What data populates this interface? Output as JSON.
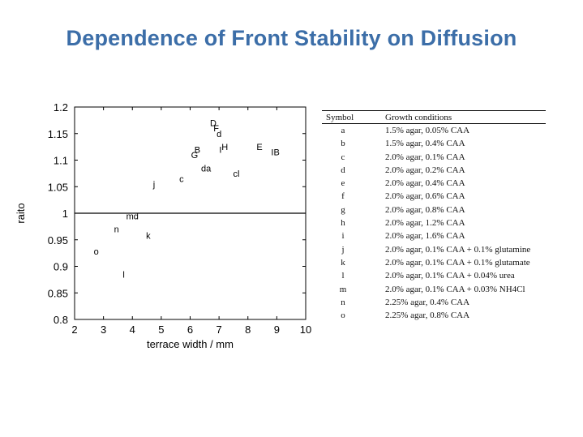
{
  "title": "Dependence of Front Stability on Diffusion",
  "chart_data": {
    "type": "scatter",
    "xlabel": "terrace width / mm",
    "ylabel": "raito",
    "xlim": [
      2,
      10
    ],
    "ylim": [
      0.8,
      1.2
    ],
    "xticks": [
      "2",
      "3",
      "4",
      "5",
      "6",
      "7",
      "8",
      "9",
      "10"
    ],
    "yticks": [
      "0.8",
      "0.85",
      "0.9",
      "0.95",
      "1",
      "1.05",
      "1.1",
      "1.15",
      "1.2"
    ],
    "reference_line": 1.0,
    "points": [
      {
        "label": "D",
        "x": 6.8,
        "y": 1.17
      },
      {
        "label": "F",
        "x": 6.9,
        "y": 1.16
      },
      {
        "label": "d",
        "x": 7.0,
        "y": 1.15
      },
      {
        "label": "H",
        "x": 7.2,
        "y": 1.125
      },
      {
        "label": "I",
        "x": 7.05,
        "y": 1.12
      },
      {
        "label": "E",
        "x": 8.4,
        "y": 1.125
      },
      {
        "label": "B",
        "x": 6.25,
        "y": 1.12
      },
      {
        "label": "G",
        "x": 6.15,
        "y": 1.11
      },
      {
        "label": "IB",
        "x": 8.95,
        "y": 1.115
      },
      {
        "label": "da",
        "x": 6.55,
        "y": 1.085
      },
      {
        "label": "cl",
        "x": 7.6,
        "y": 1.075
      },
      {
        "label": "c",
        "x": 5.7,
        "y": 1.065
      },
      {
        "label": "j",
        "x": 4.75,
        "y": 1.055
      },
      {
        "label": "md",
        "x": 4.0,
        "y": 0.995
      },
      {
        "label": "n",
        "x": 3.45,
        "y": 0.97
      },
      {
        "label": "k",
        "x": 4.55,
        "y": 0.958
      },
      {
        "label": "o",
        "x": 2.75,
        "y": 0.928
      },
      {
        "label": "l",
        "x": 3.7,
        "y": 0.885
      }
    ]
  },
  "legend_table": {
    "headers": [
      "Symbol",
      "Growth conditions"
    ],
    "rows": [
      [
        "a",
        "1.5% agar, 0.05% CAA"
      ],
      [
        "b",
        "1.5% agar, 0.4% CAA"
      ],
      [
        "c",
        "2.0% agar, 0.1% CAA"
      ],
      [
        "d",
        "2.0% agar, 0.2% CAA"
      ],
      [
        "e",
        "2.0% agar, 0.4% CAA"
      ],
      [
        "f",
        "2.0% agar, 0.6% CAA"
      ],
      [
        "g",
        "2.0% agar, 0.8% CAA"
      ],
      [
        "h",
        "2.0% agar, 1.2% CAA"
      ],
      [
        "i",
        "2.0% agar, 1.6% CAA"
      ],
      [
        "j",
        "2.0% agar, 0.1% CAA + 0.1% glutamine"
      ],
      [
        "k",
        "2.0% agar, 0.1% CAA + 0.1% glutamate"
      ],
      [
        "l",
        "2.0% agar, 0.1% CAA + 0.04% urea"
      ],
      [
        "m",
        "2.0% agar, 0.1% CAA + 0.03% NH4Cl"
      ],
      [
        "n",
        "2.25% agar, 0.4% CAA"
      ],
      [
        "o",
        "2.25% agar, 0.8% CAA"
      ]
    ]
  }
}
